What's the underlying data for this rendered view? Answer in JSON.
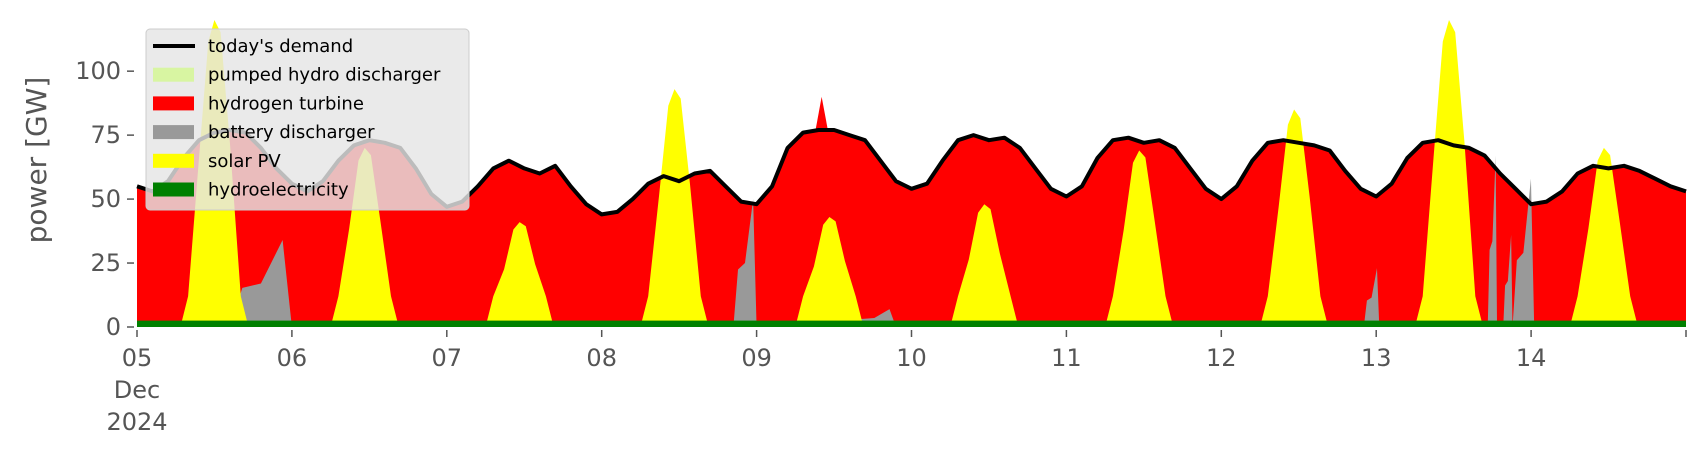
{
  "chart_data": {
    "type": "area",
    "ylabel": "power [GW]",
    "ylim": [
      0,
      120
    ],
    "yticks": [
      "0",
      "25",
      "50",
      "75",
      "100"
    ],
    "xlim": [
      "2024-12-05 00:00",
      "2024-12-15 00:00"
    ],
    "xtick_labels": [
      "05\nDec\n2024",
      "06",
      "07",
      "08",
      "09",
      "10",
      "11",
      "12",
      "13",
      "14",
      ""
    ],
    "grid": false,
    "legend_position": "upper-left",
    "legend_entries": [
      {
        "label": "today's demand",
        "color": "#000000",
        "kind": "line"
      },
      {
        "label": "pumped hydro discharger",
        "color": "#d8f5a2",
        "kind": "patch"
      },
      {
        "label": "hydrogen turbine",
        "color": "#ff0000",
        "kind": "patch"
      },
      {
        "label": "battery discharger",
        "color": "#999999",
        "kind": "patch"
      },
      {
        "label": "solar PV",
        "color": "#ffff00",
        "kind": "patch"
      },
      {
        "label": "hydroelectricity",
        "color": "#008000",
        "kind": "patch"
      }
    ],
    "demand": {
      "x_days": [
        0,
        0.1,
        0.2,
        0.3,
        0.4,
        0.5,
        0.6,
        0.7,
        0.8,
        0.9,
        1.0,
        1.1,
        1.2,
        1.3,
        1.4,
        1.5,
        1.6,
        1.7,
        1.8,
        1.9,
        2.0,
        2.1,
        2.2,
        2.3,
        2.4,
        2.5,
        2.6,
        2.7,
        2.8,
        2.9,
        3.0,
        3.1,
        3.2,
        3.3,
        3.4,
        3.5,
        3.6,
        3.7,
        3.8,
        3.9,
        4.0,
        4.1,
        4.2,
        4.3,
        4.4,
        4.5,
        4.6,
        4.7,
        4.8,
        4.9,
        5.0,
        5.1,
        5.2,
        5.3,
        5.4,
        5.5,
        5.6,
        5.7,
        5.8,
        5.9,
        6.0,
        6.1,
        6.2,
        6.3,
        6.4,
        6.5,
        6.6,
        6.7,
        6.8,
        6.9,
        7.0,
        7.1,
        7.2,
        7.3,
        7.4,
        7.5,
        7.6,
        7.7,
        7.8,
        7.9,
        8.0,
        8.1,
        8.2,
        8.3,
        8.4,
        8.5,
        8.6,
        8.7,
        8.8,
        8.9,
        9.0,
        9.1,
        9.2,
        9.3,
        9.4,
        9.5,
        9.6,
        9.7,
        9.8,
        9.9,
        10.0
      ],
      "gw": [
        55,
        53,
        57,
        66,
        73,
        76,
        77,
        76,
        70,
        62,
        56,
        53,
        57,
        65,
        71,
        73,
        72,
        70,
        62,
        52,
        47,
        49,
        55,
        62,
        65,
        62,
        60,
        63,
        55,
        48,
        44,
        45,
        50,
        56,
        59,
        57,
        60,
        61,
        55,
        49,
        48,
        55,
        70,
        76,
        77,
        77,
        75,
        73,
        65,
        57,
        54,
        56,
        65,
        73,
        75,
        73,
        74,
        70,
        62,
        54,
        51,
        55,
        66,
        73,
        74,
        72,
        73,
        70,
        62,
        54,
        50,
        55,
        65,
        72,
        73,
        72,
        71,
        69,
        61,
        54,
        51,
        56,
        66,
        72,
        73,
        71,
        70,
        67,
        60,
        54,
        48,
        49,
        53,
        60,
        63,
        62,
        63,
        61,
        58,
        55,
        53
      ]
    },
    "solar_peaks": [
      {
        "day": 0.5,
        "peak_gw": 120
      },
      {
        "day": 1.47,
        "peak_gw": 70
      },
      {
        "day": 2.47,
        "peak_gw": 41
      },
      {
        "day": 3.47,
        "peak_gw": 93
      },
      {
        "day": 4.47,
        "peak_gw": 43
      },
      {
        "day": 5.47,
        "peak_gw": 48
      },
      {
        "day": 6.47,
        "peak_gw": 69
      },
      {
        "day": 7.47,
        "peak_gw": 85
      },
      {
        "day": 8.47,
        "peak_gw": 120
      },
      {
        "day": 9.47,
        "peak_gw": 70
      }
    ],
    "battery_events": [
      {
        "start_day": 0.6,
        "end_day": 1.0,
        "peak_gw": 34
      },
      {
        "start_day": 3.85,
        "end_day": 4.0,
        "peak_gw": 50
      },
      {
        "start_day": 4.62,
        "end_day": 4.9,
        "peak_gw": 7
      },
      {
        "start_day": 7.92,
        "end_day": 8.02,
        "peak_gw": 23
      },
      {
        "start_day": 8.72,
        "end_day": 8.78,
        "peak_gw": 67
      },
      {
        "start_day": 8.82,
        "end_day": 8.88,
        "peak_gw": 36
      },
      {
        "start_day": 8.88,
        "end_day": 9.02,
        "peak_gw": 58
      }
    ],
    "hydrogen_spikes": [
      {
        "day": 4.42,
        "top_gw": 90
      }
    ],
    "hydroelectricity_gw": 2.5
  }
}
